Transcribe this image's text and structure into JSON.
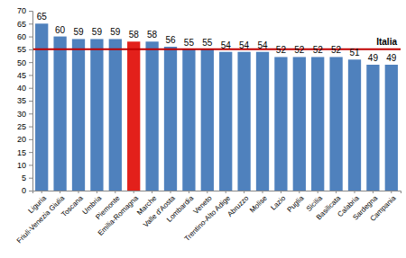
{
  "chart_data": {
    "type": "bar",
    "categories": [
      "Liguria",
      "Friuli-Venezia Giulia",
      "Toscana",
      "Umbria",
      "Piemonte",
      "Emilia-Romagna",
      "Marche",
      "Valle d'Aosta",
      "Lombardia",
      "Veneto",
      "Trentino-Alto Adige",
      "Abruzzo",
      "Molise",
      "Lazio",
      "Puglia",
      "Sicilia",
      "Basilicata",
      "Calabria",
      "Sardegna",
      "Campania"
    ],
    "values": [
      65,
      60,
      59,
      59,
      59,
      58,
      58,
      56,
      55,
      55,
      54,
      54,
      54,
      52,
      52,
      52,
      52,
      51,
      49,
      49
    ],
    "colors": [
      "#4f81bd",
      "#4f81bd",
      "#4f81bd",
      "#4f81bd",
      "#4f81bd",
      "#e3201b",
      "#4f81bd",
      "#4f81bd",
      "#4f81bd",
      "#4f81bd",
      "#4f81bd",
      "#4f81bd",
      "#4f81bd",
      "#4f81bd",
      "#4f81bd",
      "#4f81bd",
      "#4f81bd",
      "#4f81bd",
      "#4f81bd",
      "#4f81bd"
    ],
    "data_labels": true,
    "grid": false,
    "ylim": [
      0,
      70
    ],
    "yticks": [
      0,
      5,
      10,
      15,
      20,
      25,
      30,
      35,
      40,
      45,
      50,
      55,
      60,
      65,
      70
    ],
    "annotations": [
      {
        "text": "Italia",
        "y": 55
      }
    ]
  }
}
